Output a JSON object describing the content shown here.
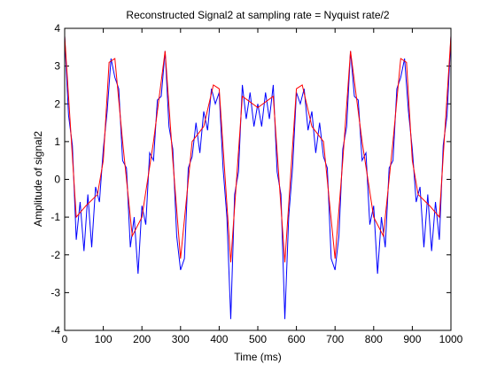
{
  "chart_data": {
    "type": "line",
    "title": "Reconstructed Signal2 at sampling rate = Nyquist rate/2",
    "xlabel": "Time (ms)",
    "ylabel": "Amplitude of signal2",
    "xlim": [
      0,
      1000
    ],
    "ylim": [
      -4,
      4
    ],
    "xticks": [
      0,
      100,
      200,
      300,
      400,
      500,
      600,
      700,
      800,
      900,
      1000
    ],
    "yticks": [
      -4,
      -3,
      -2,
      -1,
      0,
      1,
      2,
      3,
      4
    ],
    "grid": false,
    "series": [
      {
        "color": "#0000ff",
        "x": [
          0,
          10,
          20,
          30,
          40,
          50,
          60,
          70,
          80,
          90,
          100,
          110,
          120,
          130,
          140,
          150,
          160,
          170,
          180,
          190,
          200,
          210,
          220,
          230,
          240,
          250,
          260,
          270,
          280,
          290,
          300,
          310,
          320,
          330,
          340,
          350,
          360,
          370,
          380,
          390,
          400,
          410,
          420,
          430,
          440,
          450,
          460,
          470,
          480,
          490,
          500,
          510,
          520,
          530,
          540,
          550,
          560,
          570,
          580,
          590,
          600,
          610,
          620,
          630,
          640,
          650,
          660,
          670,
          680,
          690,
          700,
          710,
          720,
          730,
          740,
          750,
          760,
          770,
          780,
          790,
          800,
          810,
          820,
          830,
          840,
          850,
          860,
          870,
          880,
          890,
          900,
          910,
          920,
          930,
          940,
          950,
          960,
          970,
          980,
          990,
          1000
        ],
        "values": [
          3.8,
          1.7,
          0.9,
          -1.6,
          -0.6,
          -1.9,
          -0.4,
          -1.8,
          -0.2,
          -0.6,
          0.8,
          1.8,
          3.2,
          2.7,
          2.4,
          0.5,
          0.3,
          -1.8,
          -1.0,
          -2.5,
          -0.7,
          -1.2,
          0.7,
          0.5,
          2.1,
          2.2,
          3.4,
          1.4,
          0.8,
          -1.5,
          -2.4,
          -2.1,
          0.3,
          0.6,
          1.5,
          0.7,
          1.8,
          1.3,
          2.4,
          2.0,
          2.3,
          0.3,
          -1.0,
          -3.7,
          -0.4,
          0.2,
          2.5,
          1.6,
          2.3,
          1.4,
          2.0,
          1.4,
          2.3,
          1.6,
          2.5,
          0.2,
          -0.4,
          -3.7,
          -1.0,
          0.3,
          2.3,
          2.0,
          2.4,
          1.3,
          1.8,
          0.7,
          1.5,
          0.6,
          0.3,
          -2.1,
          -2.4,
          -1.5,
          0.8,
          1.4,
          3.4,
          2.2,
          2.1,
          0.5,
          0.7,
          -1.2,
          -0.7,
          -2.5,
          -1.0,
          -1.8,
          0.3,
          0.5,
          2.4,
          2.7,
          3.2,
          1.8,
          0.8,
          -0.6,
          -0.2,
          -1.8,
          -0.4,
          -1.9,
          -0.6,
          -1.6,
          0.9,
          1.7,
          3.8
        ]
      },
      {
        "color": "#ff0000",
        "x": [
          0,
          30,
          55,
          85,
          100,
          115,
          130,
          150,
          175,
          200,
          230,
          260,
          280,
          300,
          330,
          360,
          385,
          400,
          430,
          460,
          500,
          540,
          570,
          600,
          615,
          640,
          670,
          700,
          720,
          740,
          770,
          800,
          825,
          850,
          870,
          885,
          900,
          915,
          945,
          970,
          1000
        ],
        "values": [
          3.8,
          -1.0,
          -0.7,
          -0.4,
          0.5,
          3.1,
          3.2,
          1.0,
          -1.5,
          -1.0,
          1.0,
          3.4,
          0.5,
          -2.1,
          1.0,
          1.4,
          2.5,
          2.4,
          -2.2,
          2.2,
          1.9,
          2.2,
          -2.2,
          2.4,
          2.5,
          1.4,
          1.0,
          -2.1,
          0.5,
          3.4,
          1.0,
          -1.0,
          -1.5,
          1.0,
          3.2,
          3.1,
          0.5,
          -0.4,
          -0.7,
          -1.0,
          3.8
        ]
      }
    ]
  }
}
